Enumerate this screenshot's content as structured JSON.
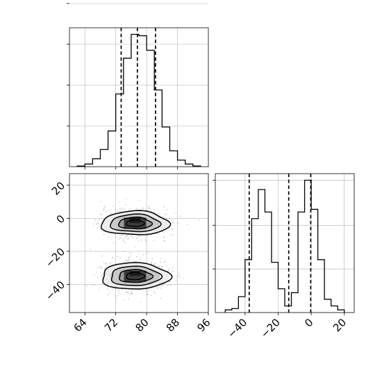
{
  "chart_data": [
    {
      "panel": "marginal-x",
      "type": "histogram",
      "bin_edges": [
        62,
        64,
        66,
        68,
        70,
        72,
        74,
        76,
        78,
        80,
        82,
        84,
        86,
        88,
        90,
        92,
        94
      ],
      "counts": [
        0.005,
        0.02,
        0.06,
        0.13,
        0.27,
        0.55,
        0.82,
        1.0,
        0.99,
        0.88,
        0.58,
        0.3,
        0.12,
        0.05,
        0.02,
        0.005
      ],
      "xlim": [
        60,
        96
      ],
      "quantiles": [
        73.4,
        77.6,
        82.3
      ],
      "grid": true
    },
    {
      "panel": "joint",
      "type": "scatter",
      "xlim": [
        60,
        96
      ],
      "ylim": [
        -57,
        27
      ],
      "xticks": [
        64,
        72,
        80,
        88,
        96
      ],
      "xticklabels": [
        "64",
        "72",
        "80",
        "88",
        "96"
      ],
      "yticks": [
        -40,
        -20,
        0,
        20
      ],
      "yticklabels": [
        "−40",
        "−20",
        "0",
        "20"
      ],
      "clusters": [
        {
          "center": [
            77,
            -3
          ],
          "spread": [
            4.3,
            4.5
          ]
        },
        {
          "center": [
            77,
            -35
          ],
          "spread": [
            4.3,
            5.0
          ]
        }
      ],
      "contour_levels": 4,
      "grid": true
    },
    {
      "panel": "marginal-y",
      "type": "histogram",
      "bin_edges": [
        -52,
        -48,
        -44,
        -40,
        -36,
        -32,
        -28,
        -24,
        -20,
        -16,
        -12,
        -8,
        -4,
        0,
        4,
        8,
        12,
        16,
        20
      ],
      "counts": [
        0.02,
        0.03,
        0.12,
        0.4,
        0.71,
        0.93,
        0.76,
        0.38,
        0.18,
        0.05,
        0.15,
        0.76,
        1.0,
        0.78,
        0.4,
        0.1,
        0.05,
        0.02
      ],
      "xlim": [
        -58,
        26
      ],
      "xticks": [
        -40,
        -20,
        0,
        20
      ],
      "xticklabels": [
        "−40",
        "−20",
        "0",
        "20"
      ],
      "quantiles": [
        -37.5,
        -13.6,
        -0.3
      ],
      "grid": true
    }
  ]
}
